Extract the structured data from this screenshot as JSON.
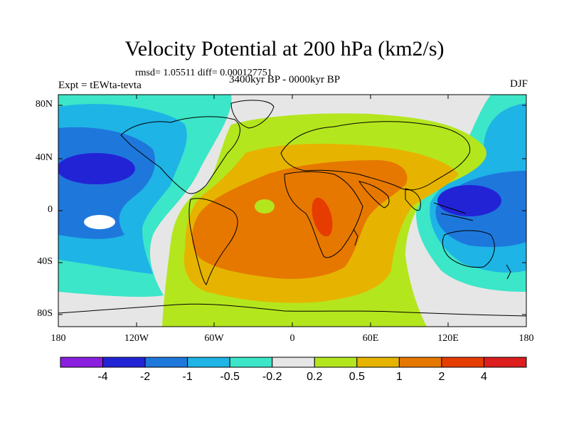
{
  "title": "Velocity Potential at 200 hPa (km2/s)",
  "stats_line": "rmsd= 1.05511 diff= 0.000127751",
  "left_label": "Expt = tEWta-tevta",
  "center_label": "3400kyr BP - 0000kyr BP",
  "right_label": "DJF",
  "lat_labels": [
    "80N",
    "40N",
    "0",
    "40S",
    "80S"
  ],
  "lon_labels": [
    "180",
    "120W",
    "60W",
    "0",
    "60E",
    "120E",
    "180"
  ],
  "colorbar": {
    "labels": [
      "-4",
      "-2",
      "-1",
      "-0.5",
      "-0.2",
      "0.2",
      "0.5",
      "1",
      "2",
      "4"
    ],
    "colors": [
      "#8a1fe0",
      "#2323d6",
      "#1e78dc",
      "#1eb4e6",
      "#3ce6c8",
      "#e6e6e6",
      "#b4e61e",
      "#e6b400",
      "#e67800",
      "#e63c00",
      "#dc1e1e"
    ]
  }
}
